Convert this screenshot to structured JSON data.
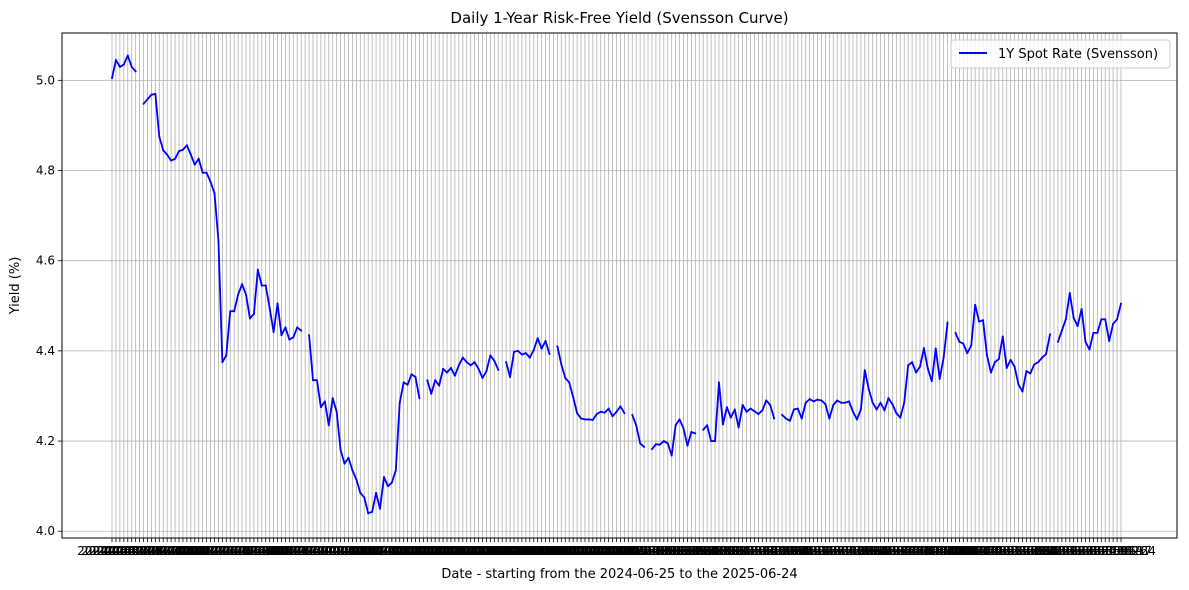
{
  "chart_data": {
    "type": "line",
    "title": "Daily 1-Year Risk-Free Yield (Svensson Curve)",
    "xlabel": "Date - starting from the 2024-06-25 to the 2025-06-24",
    "ylabel": "Yield (%)",
    "x_start": "2024-06-25",
    "x_end": "2025-06-24",
    "ylim": [
      3.985,
      5.105
    ],
    "yticks": [
      "4.0",
      "4.2",
      "4.4",
      "4.6",
      "4.8",
      "5.0"
    ],
    "grid": true,
    "legend_position": "top-right",
    "colors": {
      "line": "#0000ff",
      "grid": "#b0b0b0",
      "frame": "#000000"
    },
    "series": [
      {
        "name": "1Y Spot Rate (Svensson)",
        "values": [
          5.005,
          5.045,
          5.03,
          5.035,
          5.055,
          5.03,
          5.02,
          null,
          4.948,
          4.958,
          4.968,
          4.97,
          4.875,
          4.845,
          4.835,
          4.822,
          4.826,
          4.843,
          4.846,
          4.856,
          4.835,
          4.813,
          4.826,
          4.795,
          4.795,
          4.775,
          4.75,
          4.645,
          4.375,
          4.39,
          4.488,
          4.488,
          4.525,
          4.548,
          4.525,
          4.472,
          4.482,
          4.58,
          4.545,
          4.545,
          4.495,
          4.442,
          4.505,
          4.435,
          4.452,
          4.425,
          4.43,
          4.452,
          4.445,
          null,
          4.435,
          4.335,
          4.335,
          4.275,
          4.288,
          4.235,
          4.295,
          4.265,
          4.18,
          4.15,
          4.163,
          4.135,
          4.115,
          4.085,
          4.075,
          4.04,
          4.043,
          4.085,
          4.05,
          4.12,
          4.1,
          4.108,
          4.135,
          4.285,
          4.33,
          4.325,
          4.348,
          4.342,
          4.295,
          null,
          4.335,
          4.305,
          4.335,
          4.323,
          4.36,
          4.352,
          4.362,
          4.345,
          4.368,
          4.385,
          4.375,
          4.368,
          4.375,
          4.36,
          4.34,
          4.355,
          4.39,
          4.378,
          4.358,
          null,
          4.375,
          4.342,
          4.398,
          4.4,
          4.392,
          4.395,
          4.385,
          4.402,
          4.428,
          4.405,
          4.422,
          4.393,
          null,
          4.41,
          4.37,
          4.34,
          4.33,
          4.298,
          4.262,
          4.25,
          4.248,
          4.248,
          4.247,
          4.26,
          4.265,
          4.263,
          4.272,
          4.255,
          4.265,
          4.277,
          4.262,
          null,
          4.258,
          4.235,
          4.195,
          4.187,
          null,
          4.182,
          4.193,
          4.192,
          4.2,
          4.195,
          4.168,
          4.235,
          4.248,
          4.228,
          4.19,
          4.22,
          4.217,
          null,
          4.225,
          4.235,
          4.2,
          4.2,
          4.33,
          4.237,
          4.275,
          4.252,
          4.27,
          4.23,
          4.28,
          4.265,
          4.272,
          4.266,
          4.26,
          4.268,
          4.29,
          4.28,
          4.25,
          null,
          4.258,
          4.25,
          4.245,
          4.27,
          4.272,
          4.25,
          4.285,
          4.293,
          4.288,
          4.292,
          4.29,
          4.282,
          4.25,
          4.28,
          4.29,
          4.285,
          4.285,
          4.288,
          4.265,
          4.248,
          4.27,
          4.357,
          4.315,
          4.285,
          4.27,
          4.285,
          4.268,
          4.295,
          4.282,
          4.262,
          4.252,
          4.285,
          4.368,
          4.375,
          4.352,
          4.365,
          4.406,
          4.36,
          4.333,
          4.405,
          4.338,
          4.385,
          4.463,
          null,
          4.44,
          4.42,
          4.416,
          4.395,
          4.412,
          4.502,
          4.465,
          4.468,
          4.39,
          4.352,
          4.375,
          4.382,
          4.432,
          4.362,
          4.38,
          4.365,
          4.325,
          4.31,
          4.355,
          4.35,
          4.37,
          4.375,
          4.385,
          4.393,
          4.437,
          null,
          4.42,
          4.445,
          4.47,
          4.528,
          4.473,
          4.455,
          4.493,
          4.42,
          4.403,
          4.44,
          4.44,
          4.47,
          4.47,
          4.422,
          4.46,
          4.47,
          4.505
        ]
      }
    ]
  }
}
